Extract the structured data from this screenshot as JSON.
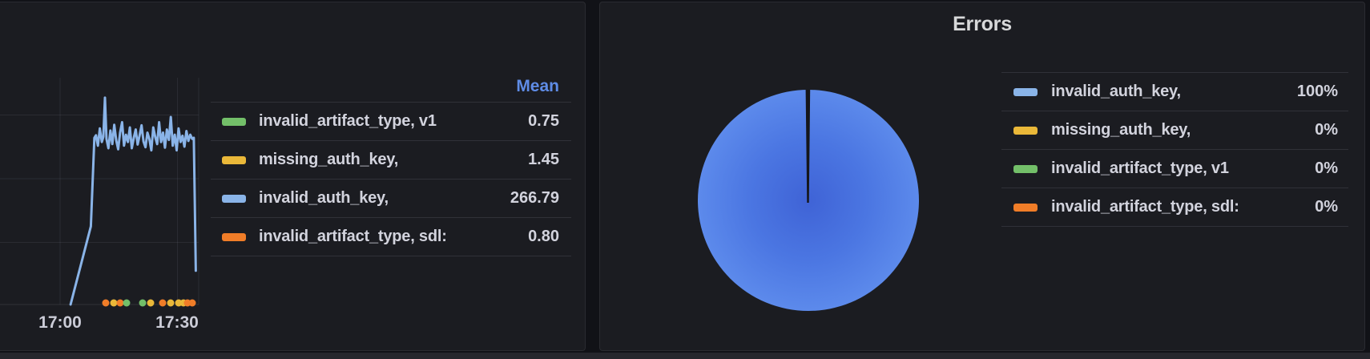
{
  "colors": {
    "green": "#73BF69",
    "yellow": "#EAB839",
    "blue": "#8AB4E8",
    "orange": "#F07D28",
    "panel_bg": "#1B1C21",
    "page_bg": "#111217",
    "legend_header_blue": "#5F8CE6",
    "pie_gradient_center": "#3F63D6",
    "pie_gradient_edge": "#6C9CF4",
    "pie_slice_divider": "#15161A"
  },
  "left_panel": {
    "legend_header": "Mean",
    "legend": [
      {
        "label": "invalid_artifact_type, v1",
        "color": "green",
        "value": "0.75"
      },
      {
        "label": "missing_auth_key,",
        "color": "yellow",
        "value": "1.45"
      },
      {
        "label": "invalid_auth_key,",
        "color": "blue",
        "value": "266.79"
      },
      {
        "label": "invalid_artifact_type, sdl:",
        "color": "orange",
        "value": "0.80"
      }
    ],
    "x_ticks": [
      {
        "label": "17:00",
        "minute": 0
      },
      {
        "label": "17:30",
        "minute": 30
      }
    ]
  },
  "right_panel": {
    "title": "Errors",
    "legend": [
      {
        "label": "invalid_auth_key,",
        "color": "blue",
        "value": "100%"
      },
      {
        "label": "missing_auth_key,",
        "color": "yellow",
        "value": "0%"
      },
      {
        "label": "invalid_artifact_type, v1",
        "color": "green",
        "value": "0%"
      },
      {
        "label": "invalid_artifact_type, sdl:",
        "color": "orange",
        "value": "0%"
      }
    ]
  },
  "chart_data": [
    {
      "type": "line",
      "title": "",
      "xlabel": "",
      "ylabel": "",
      "x_axis": {
        "tick_labels": [
          "17:00",
          "17:30"
        ],
        "visible_range_minutes": [
          -15.4,
          35.5
        ]
      },
      "y_axis": {
        "labels_visible": false
      },
      "legend": {
        "position": "right-table",
        "column": "Mean"
      },
      "series": [
        {
          "name": "invalid_auth_key,",
          "color": "blue",
          "mean": 266.79,
          "render": "line",
          "points_minute_value": [
            [
              2.7,
              0
            ],
            [
              7.9,
              150
            ],
            [
              8.8,
              320
            ],
            [
              9.2,
              325
            ],
            [
              9.7,
              305
            ],
            [
              10.2,
              338
            ],
            [
              10.7,
              312
            ],
            [
              11.1,
              322
            ],
            [
              11.5,
              397
            ],
            [
              11.9,
              318
            ],
            [
              12.4,
              300
            ],
            [
              12.9,
              334
            ],
            [
              13.4,
              308
            ],
            [
              13.9,
              345
            ],
            [
              14.4,
              315
            ],
            [
              14.9,
              298
            ],
            [
              15.4,
              330
            ],
            [
              15.9,
              350
            ],
            [
              16.4,
              305
            ],
            [
              16.9,
              326
            ],
            [
              17.4,
              312
            ],
            [
              17.9,
              340
            ],
            [
              18.4,
              300
            ],
            [
              18.9,
              320
            ],
            [
              19.4,
              336
            ],
            [
              19.9,
              307
            ],
            [
              20.4,
              325
            ],
            [
              20.9,
              344
            ],
            [
              21.4,
              313
            ],
            [
              21.9,
              302
            ],
            [
              22.4,
              330
            ],
            [
              22.9,
              318
            ],
            [
              23.4,
              296
            ],
            [
              23.9,
              340
            ],
            [
              24.4,
              322
            ],
            [
              24.9,
              308
            ],
            [
              25.4,
              350
            ],
            [
              25.9,
              312
            ],
            [
              26.4,
              330
            ],
            [
              26.9,
              301
            ],
            [
              27.4,
              336
            ],
            [
              27.9,
              316
            ],
            [
              28.4,
              360
            ],
            [
              28.9,
              305
            ],
            [
              29.4,
              326
            ],
            [
              29.9,
              296
            ],
            [
              30.4,
              338
            ],
            [
              30.9,
              312
            ],
            [
              31.4,
              324
            ],
            [
              31.9,
              303
            ],
            [
              32.4,
              333
            ],
            [
              32.9,
              314
            ],
            [
              33.4,
              326
            ],
            [
              33.9,
              318
            ],
            [
              34.3,
              320
            ],
            [
              34.55,
              200
            ],
            [
              34.8,
              65
            ]
          ]
        },
        {
          "name": "invalid_artifact_type, v1",
          "color": "green",
          "mean": 0.75,
          "render": "event-dots"
        },
        {
          "name": "missing_auth_key,",
          "color": "yellow",
          "mean": 1.45,
          "render": "event-dots"
        },
        {
          "name": "invalid_artifact_type, sdl:",
          "color": "orange",
          "mean": 0.8,
          "render": "event-dots"
        }
      ],
      "event_dots_minute_color": [
        [
          11.71,
          "orange"
        ],
        [
          13.77,
          "yellow"
        ],
        [
          15.41,
          "orange"
        ],
        [
          17.05,
          "green"
        ],
        [
          21.16,
          "green"
        ],
        [
          23.22,
          "yellow"
        ],
        [
          26.3,
          "orange"
        ],
        [
          28.36,
          "yellow"
        ],
        [
          30.41,
          "yellow"
        ],
        [
          31.64,
          "yellow"
        ],
        [
          32.67,
          "orange"
        ],
        [
          33.9,
          "orange"
        ]
      ]
    },
    {
      "type": "pie",
      "title": "Errors",
      "legend_position": "right",
      "slices": [
        {
          "label": "invalid_auth_key,",
          "color": "blue",
          "pct": 100
        },
        {
          "label": "missing_auth_key,",
          "color": "yellow",
          "pct": 0
        },
        {
          "label": "invalid_artifact_type, v1",
          "color": "green",
          "pct": 0
        },
        {
          "label": "invalid_artifact_type, sdl:",
          "color": "orange",
          "pct": 0
        }
      ]
    }
  ]
}
